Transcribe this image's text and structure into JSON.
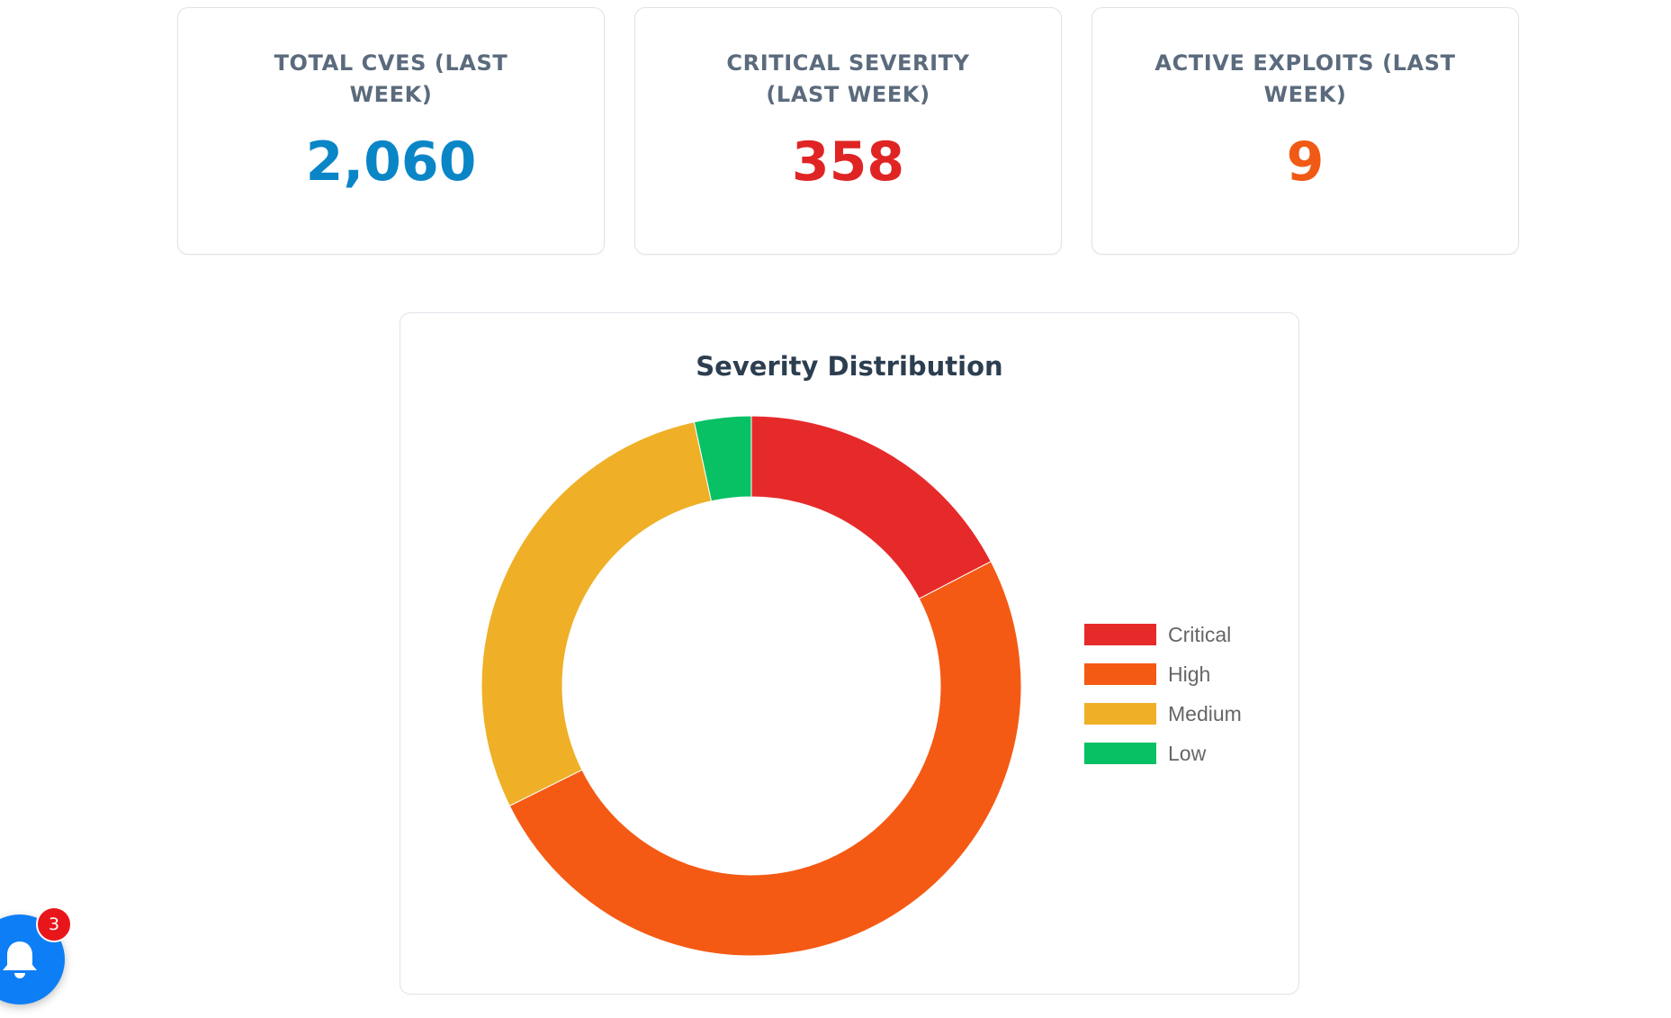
{
  "stats": {
    "total_cves": {
      "title": "TOTAL CVES (LAST WEEK)",
      "value": "2,060",
      "color": "#0a86c7"
    },
    "critical_severity": {
      "title": "CRITICAL SEVERITY (LAST WEEK)",
      "value": "358",
      "color": "#e02424"
    },
    "active_exploits": {
      "title": "ACTIVE EXPLOITS (LAST WEEK)",
      "value": "9",
      "color": "#f05a14"
    }
  },
  "chart_data": {
    "type": "pie",
    "title": "Severity Distribution",
    "variant": "doughnut",
    "categories": [
      "Critical",
      "High",
      "Medium",
      "Low"
    ],
    "values": [
      358,
      1036,
      596,
      70
    ],
    "colors": [
      "#e62a2a",
      "#f45a14",
      "#efb027",
      "#08c165"
    ],
    "legend_position": "right"
  },
  "notifications": {
    "icon": "bell-icon",
    "count": "3"
  }
}
